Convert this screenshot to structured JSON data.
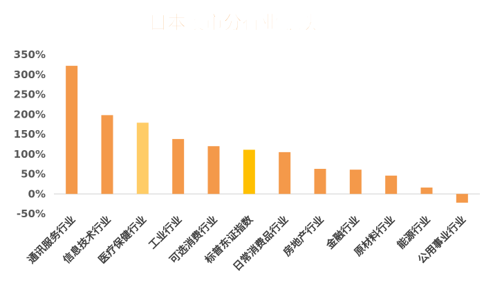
{
  "chart_data": {
    "type": "bar",
    "title": "日本股市分行业涨跌幅",
    "xlabel": "",
    "ylabel": "",
    "ylim": [
      -0.5,
      3.5
    ],
    "yticks": [
      "350%",
      "300%",
      "250%",
      "200%",
      "150%",
      "100%",
      "50%",
      "0%",
      "-50%"
    ],
    "ytick_values": [
      3.5,
      3.0,
      2.5,
      2.0,
      1.5,
      1.0,
      0.5,
      0.0,
      -0.5
    ],
    "grid": false,
    "categories": [
      "通讯服务行业",
      "信息技术行业",
      "医疗保健行业",
      "工业行业",
      "可选消费行业",
      "标普东证指数",
      "日常消费品行业",
      "房地产行业",
      "金融行业",
      "原材料行业",
      "能源行业",
      "公用事业行业"
    ],
    "values": [
      3.22,
      1.98,
      1.79,
      1.38,
      1.2,
      1.11,
      1.05,
      0.63,
      0.61,
      0.46,
      0.16,
      -0.22
    ],
    "colors": [
      "#F4994A",
      "#F4994A",
      "#FFCC66",
      "#F4994A",
      "#F4994A",
      "#FFC000",
      "#F4994A",
      "#F4994A",
      "#F4994A",
      "#F4994A",
      "#F4994A",
      "#F4994A"
    ]
  }
}
